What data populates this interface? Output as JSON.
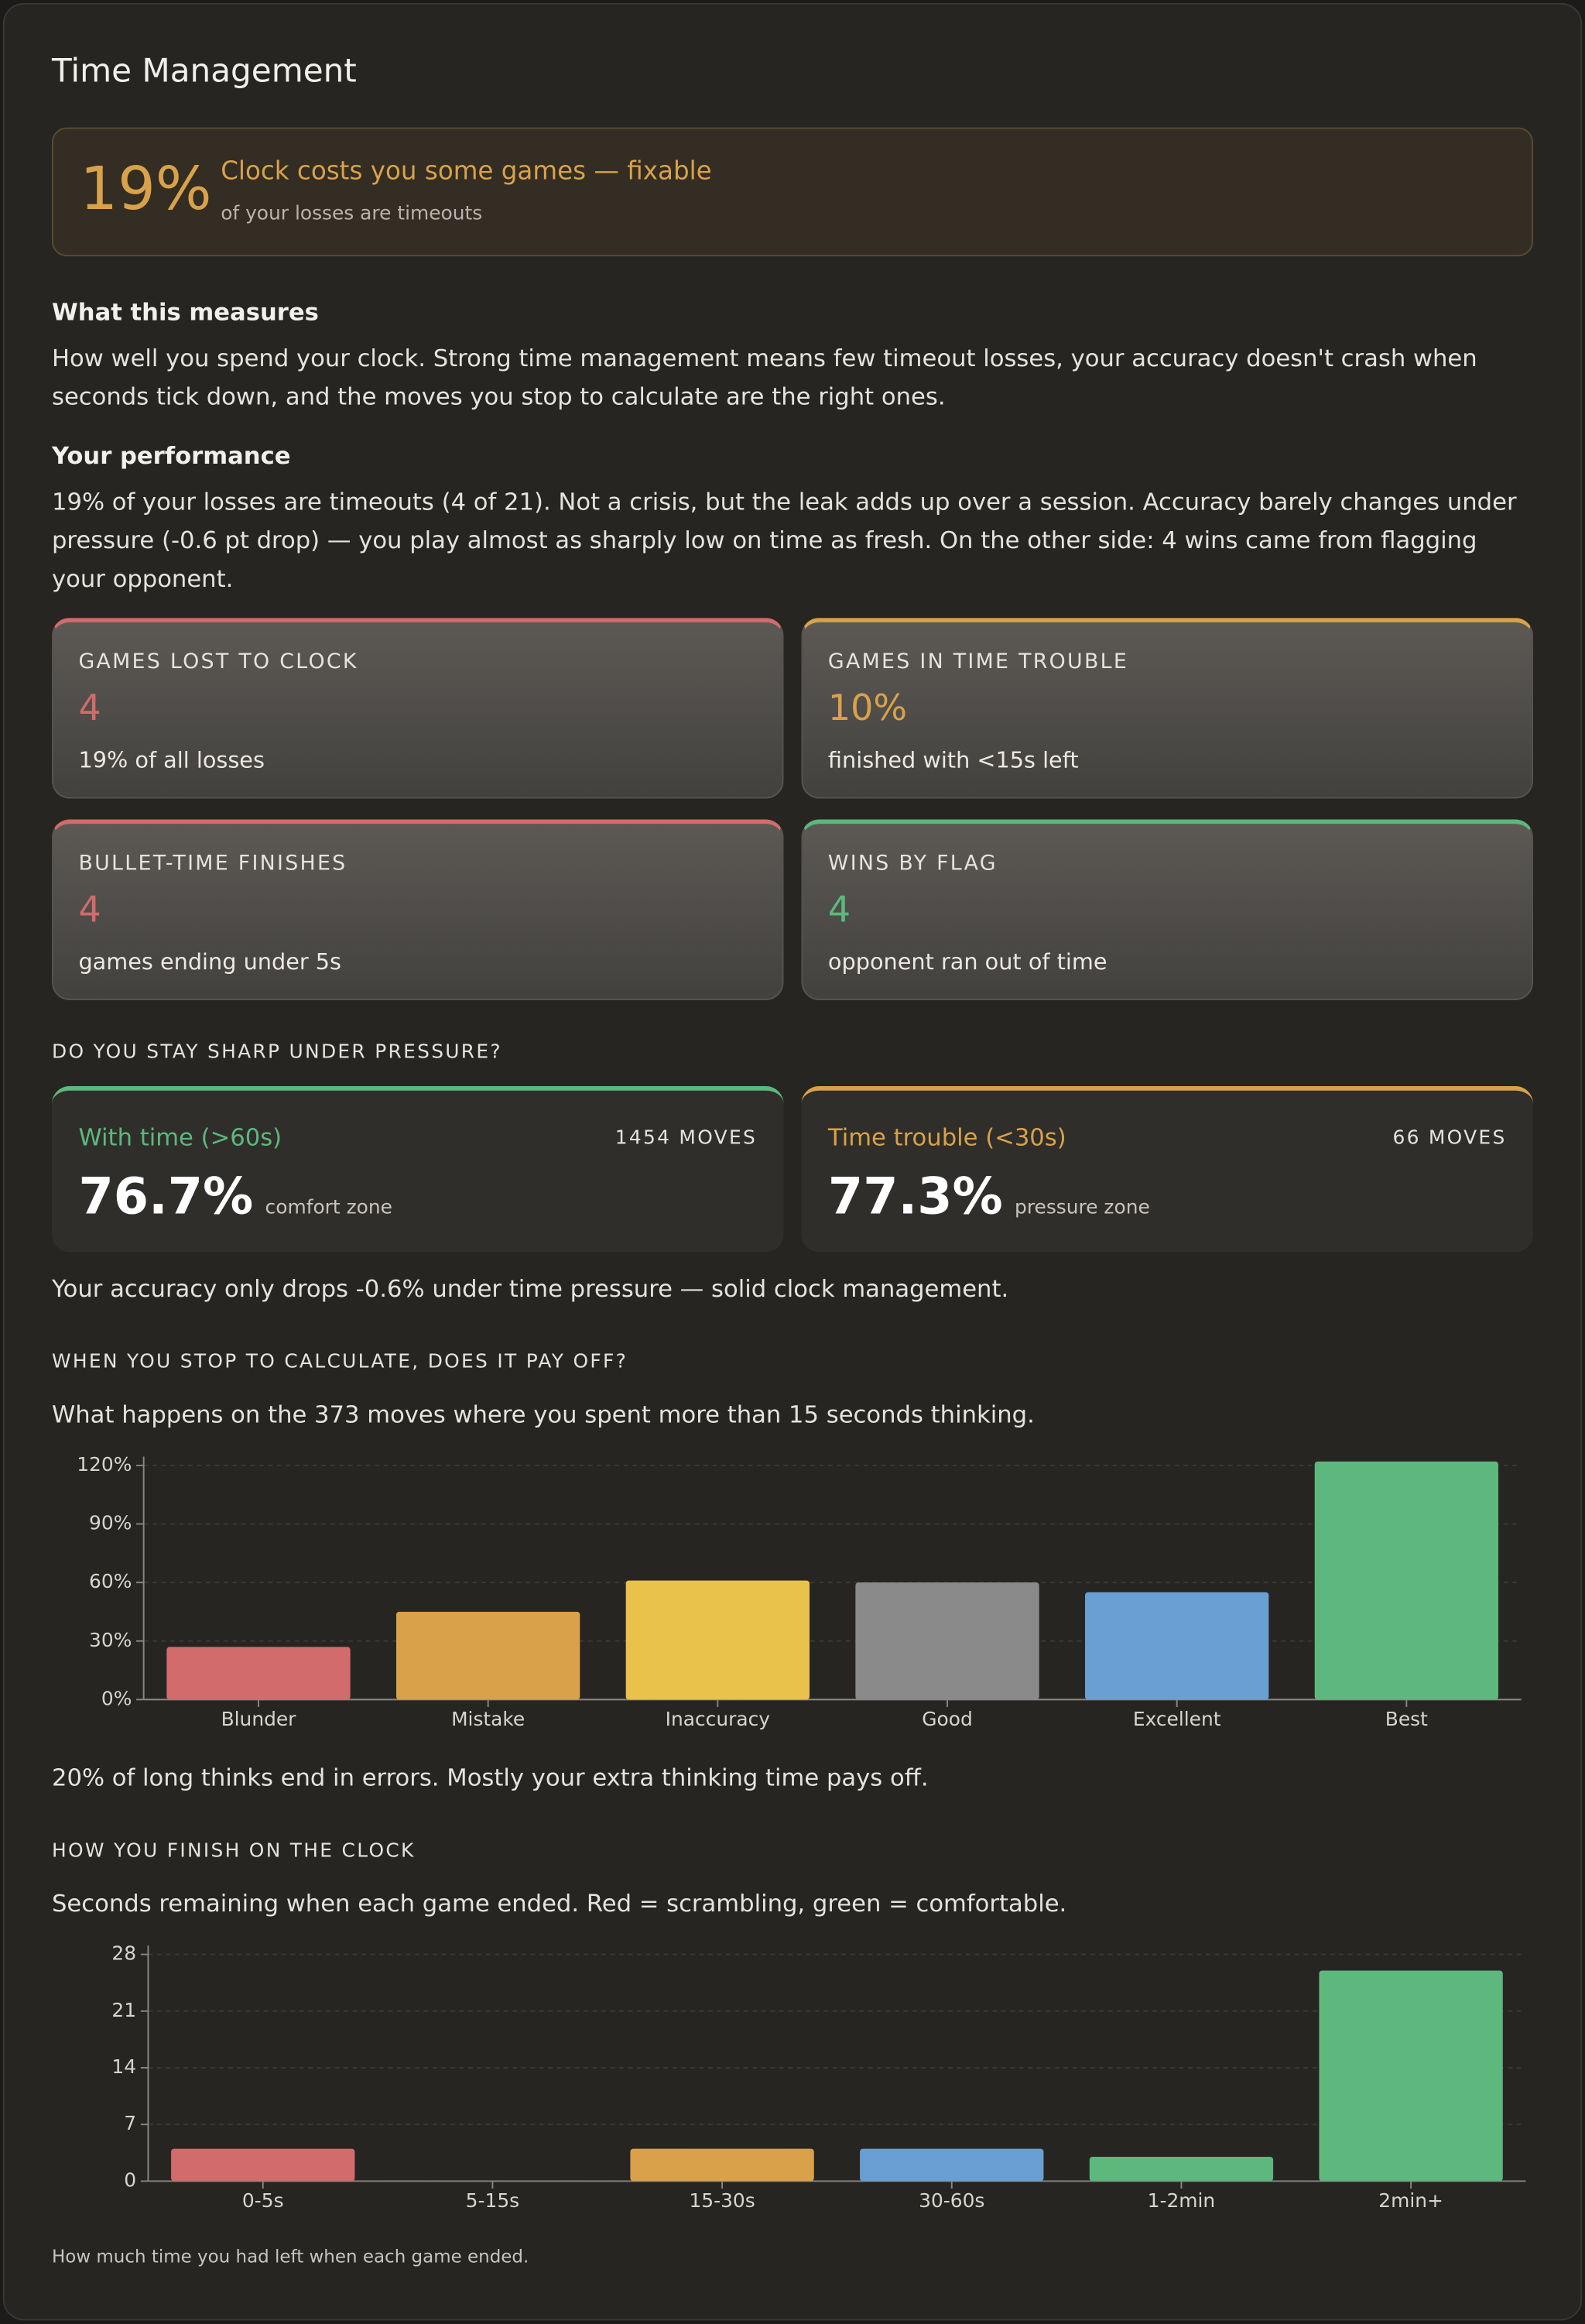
{
  "header": {
    "title": "Time Management"
  },
  "banner": {
    "value": "19%",
    "headline": "Clock costs you some games — fixable",
    "sub": "of your losses are timeouts"
  },
  "sections": [
    {
      "title": "What this measures",
      "text": "How well you spend your clock. Strong time management means few timeout losses, your accuracy doesn't crash when seconds tick down, and the moves you stop to calculate are the right ones."
    },
    {
      "title": "Your performance",
      "text": "19% of your losses are timeouts (4 of 21). Not a crisis, but the leak adds up over a session. Accuracy barely changes under pressure (-0.6 pt drop) — you play almost as sharply low on time as fresh. On the other side: 4 wins came from flagging your opponent."
    }
  ],
  "stats": [
    {
      "label": "GAMES LOST TO CLOCK",
      "value": "4",
      "note": "19% of all losses",
      "color": "#d26b6b"
    },
    {
      "label": "GAMES IN TIME TROUBLE",
      "value": "10%",
      "note": "finished with <15s left",
      "color": "#d9a24a"
    },
    {
      "label": "BULLET-TIME FINISHES",
      "value": "4",
      "note": "games ending under 5s",
      "color": "#d26b6b"
    },
    {
      "label": "WINS BY FLAG",
      "value": "4",
      "note": "opponent ran out of time",
      "color": "#5db87e"
    }
  ],
  "pressure": {
    "heading": "DO YOU STAY SHARP UNDER PRESSURE?",
    "cards": [
      {
        "name": "With time (>60s)",
        "moves": "1454 MOVES",
        "value": "76.7%",
        "zone": "comfort zone",
        "color": "#5db87e"
      },
      {
        "name": "Time trouble (<30s)",
        "moves": "66 MOVES",
        "value": "77.3%",
        "zone": "pressure zone",
        "color": "#d9a24a"
      }
    ],
    "note": "Your accuracy only drops -0.6% under time pressure — solid clock management."
  },
  "calc": {
    "heading": "WHEN YOU STOP TO CALCULATE, DOES IT PAY OFF?",
    "desc": "What happens on the 373 moves where you spent more than 15 seconds thinking.",
    "chart": {
      "type": "bar",
      "categories": [
        "Blunder",
        "Mistake",
        "Inaccuracy",
        "Good",
        "Excellent",
        "Best"
      ],
      "values": [
        27,
        45,
        61,
        60,
        55,
        122
      ],
      "colors": [
        "#d26b6b",
        "#d9a24a",
        "#e8c24a",
        "#8a8a8a",
        "#6a9fd4",
        "#5db87e"
      ],
      "ylim": [
        0,
        120
      ],
      "yticks": [
        {
          "value": 0,
          "label": "0%"
        },
        {
          "value": 30,
          "label": "30%"
        },
        {
          "value": 60,
          "label": "60%"
        },
        {
          "value": 90,
          "label": "90%"
        },
        {
          "value": 120,
          "label": "120%"
        }
      ],
      "grid": true
    },
    "note": "20% of long thinks end in errors. Mostly your extra thinking time pays off."
  },
  "finish": {
    "heading": "HOW YOU FINISH ON THE CLOCK",
    "desc": "Seconds remaining when each game ended. Red = scrambling, green = comfortable.",
    "chart": {
      "type": "bar",
      "categories": [
        "0-5s",
        "5-15s",
        "15-30s",
        "30-60s",
        "1-2min",
        "2min+"
      ],
      "values": [
        4,
        0,
        4,
        4,
        3,
        26
      ],
      "colors": [
        "#d26b6b",
        "#d26b6b",
        "#d9a24a",
        "#6a9fd4",
        "#5db87e",
        "#5db87e"
      ],
      "ylim": [
        0,
        28
      ],
      "yticks": [
        0,
        7,
        14,
        21,
        28
      ],
      "grid": true
    },
    "footnote": "How much time you had left when each game ended."
  }
}
